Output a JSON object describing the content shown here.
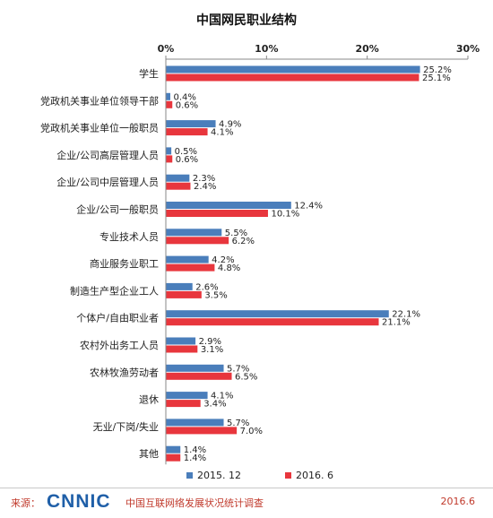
{
  "chart_data": {
    "type": "bar",
    "orientation": "horizontal",
    "title": "中国网民职业结构",
    "categories": [
      "学生",
      "党政机关事业单位领导干部",
      "党政机关事业单位一般职员",
      "企业/公司高层管理人员",
      "企业/公司中层管理人员",
      "企业/公司一般职员",
      "专业技术人员",
      "商业服务业职工",
      "制造生产型企业工人",
      "个体户/自由职业者",
      "农村外出务工人员",
      "农林牧渔劳动者",
      "退休",
      "无业/下岗/失业",
      "其他"
    ],
    "series": [
      {
        "name": "2015. 12",
        "color": "#4a7ebb",
        "values": [
          25.2,
          0.4,
          4.9,
          0.5,
          2.3,
          12.4,
          5.5,
          4.2,
          2.6,
          22.1,
          2.9,
          5.7,
          4.1,
          5.7,
          1.4
        ],
        "labels": [
          "25.2%",
          "0.4%",
          "4.9%",
          "0.5%",
          "2.3%",
          "12.4%",
          "5.5%",
          "4.2%",
          "2.6%",
          "22.1%",
          "2.9%",
          "5.7%",
          "4.1%",
          "5.7%",
          "1.4%"
        ]
      },
      {
        "name": "2016. 6",
        "color": "#e8363d",
        "values": [
          25.1,
          0.6,
          4.1,
          0.6,
          2.4,
          10.1,
          6.2,
          4.8,
          3.5,
          21.1,
          3.1,
          6.5,
          3.4,
          7.0,
          1.4
        ],
        "labels": [
          "25.1%",
          "0.6%",
          "4.1%",
          "0.6%",
          "2.4%",
          "10.1%",
          "6.2%",
          "4.8%",
          "3.5%",
          "21.1%",
          "3.1%",
          "6.5%",
          "3.4%",
          "7.0%",
          "1.4%"
        ]
      }
    ],
    "xlim": [
      0,
      30
    ],
    "xticks": [
      0,
      10,
      20,
      30
    ],
    "xtick_labels": [
      "0%",
      "10%",
      "20%",
      "30%"
    ],
    "xaxis_position": "top",
    "grid": false,
    "legend_position": "bottom"
  },
  "footer": {
    "source_label": "来源：",
    "logo_text": "CNNIC",
    "report_name": "中国互联网络发展状况统计调查",
    "date": "2016.6"
  }
}
